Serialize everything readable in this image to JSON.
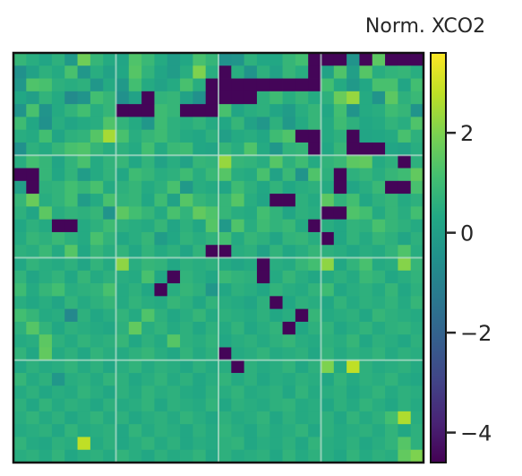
{
  "chart_data": {
    "type": "heatmap",
    "title": "",
    "xlabel": "",
    "ylabel": "",
    "rows": 32,
    "cols": 32,
    "xticks": [],
    "yticks": [],
    "gridlines": {
      "x": [
        8,
        16,
        24
      ],
      "y": [
        8,
        16,
        24
      ],
      "color": "#b9dfcf"
    },
    "colorbar": {
      "title": "Norm. XCO2",
      "range": [
        -4.6,
        3.6
      ],
      "ticks": [
        2,
        0,
        -2,
        -4
      ],
      "tick_labels": [
        "2",
        "0",
        "−2",
        "−4"
      ],
      "colormap": "viridis"
    },
    "values": [
      [
        0.8,
        0.5,
        0.2,
        0.6,
        -0.2,
        1.8,
        0.8,
        0.4,
        0.2,
        1.3,
        0.9,
        0.4,
        -0.1,
        0.3,
        1.2,
        0.8,
        -0.5,
        -0.4,
        0.6,
        0.3,
        0.3,
        0.8,
        1.1,
        -4.5,
        -4.5,
        -4.5,
        -0.4,
        -4.5,
        1.5,
        -4.5,
        -4.5,
        -4.5
      ],
      [
        -0.5,
        0.1,
        0.6,
        0.4,
        1.2,
        -0.3,
        0.5,
        0.1,
        0.3,
        1.4,
        0.7,
        0.2,
        -0.1,
        0.5,
        2.0,
        0.5,
        -4.5,
        0.5,
        -0.4,
        0.6,
        0.1,
        0.8,
        0.5,
        -4.5,
        0.1,
        1.3,
        0.0,
        1.4,
        0.5,
        0.7,
        0.8,
        0.5
      ],
      [
        -0.3,
        1.3,
        1.2,
        0.6,
        0.5,
        0.6,
        -0.3,
        0.4,
        -0.2,
        1.1,
        0.4,
        0.1,
        0.4,
        1.2,
        0.5,
        -4.5,
        -4.5,
        -4.5,
        -4.5,
        -4.5,
        -4.5,
        -4.5,
        -4.5,
        -4.5,
        1.1,
        0.4,
        -0.2,
        0.3,
        1.2,
        1.2,
        0.2,
        1.1
      ],
      [
        0.3,
        0.0,
        0.7,
        0.4,
        -0.7,
        -0.4,
        1.1,
        0.8,
        -0.5,
        0.1,
        -4.5,
        0.7,
        0.8,
        0.1,
        -0.5,
        -4.5,
        -4.5,
        -4.5,
        -4.5,
        0.6,
        1.0,
        0.5,
        0.8,
        0.4,
        0.6,
        1.7,
        2.3,
        0.4,
        -0.4,
        1.5,
        0.6,
        0.9
      ],
      [
        -0.4,
        1.2,
        -0.4,
        0.4,
        0.7,
        1.1,
        0.5,
        0.8,
        -4.5,
        -4.5,
        -4.5,
        1.0,
        0.8,
        -4.5,
        -4.5,
        -4.5,
        1.2,
        0.2,
        0.5,
        0.6,
        0.2,
        -0.1,
        0.5,
        0.8,
        0.3,
        1.1,
        -0.4,
        0.4,
        0.5,
        1.0,
        0.8,
        -0.4
      ],
      [
        1.0,
        0.3,
        -0.5,
        0.5,
        0.2,
        0.4,
        0.5,
        1.3,
        0.7,
        0.4,
        -0.3,
        1.0,
        0.6,
        0.5,
        0.7,
        0.4,
        0.3,
        0.8,
        0.1,
        -0.3,
        0.6,
        -0.2,
        0.4,
        0.8,
        0.4,
        1.0,
        0.6,
        0.3,
        0.4,
        0.7,
        0.5,
        1.3
      ],
      [
        0.5,
        0.4,
        1.1,
        0.2,
        0.6,
        0.7,
        1.4,
        2.5,
        1.2,
        0.5,
        0.8,
        1.0,
        0.6,
        0.4,
        0.3,
        0.6,
        0.0,
        0.4,
        0.5,
        0.3,
        1.0,
        1.3,
        -4.5,
        -4.5,
        0.4,
        0.6,
        -4.5,
        0.2,
        0.3,
        0.4,
        1.2,
        0.6
      ],
      [
        -0.5,
        0.6,
        0.4,
        0.8,
        1.2,
        1.3,
        0.8,
        0.5,
        0.6,
        0.4,
        1.1,
        0.4,
        0.9,
        1.0,
        0.3,
        0.2,
        0.8,
        0.5,
        1.3,
        0.4,
        -0.3,
        0.7,
        0.8,
        -4.5,
        0.3,
        0.8,
        -4.5,
        -4.5,
        -4.5,
        0.2,
        0.1,
        0.5
      ],
      [
        0.5,
        1.1,
        0.8,
        0.2,
        0.7,
        1.2,
        0.4,
        0.7,
        0.8,
        0.3,
        0.7,
        0.1,
        0.5,
        0.1,
        0.8,
        0.7,
        2.3,
        0.8,
        0.7,
        0.5,
        1.4,
        0.6,
        1.0,
        0.4,
        0.7,
        0.9,
        1.5,
        1.6,
        0.4,
        0.6,
        -4.5,
        0.6
      ],
      [
        -4.5,
        -4.5,
        0.8,
        0.3,
        0.7,
        -0.1,
        0.4,
        0.7,
        0.3,
        1.0,
        0.8,
        0.5,
        0.6,
        1.0,
        0.5,
        0.9,
        1.4,
        0.5,
        0.4,
        1.2,
        0.1,
        0.9,
        -0.4,
        1.3,
        0.6,
        -4.5,
        0.6,
        0.8,
        0.5,
        0.8,
        1.0,
        1.6
      ],
      [
        0.0,
        -4.5,
        0.6,
        0.7,
        1.1,
        0.8,
        1.2,
        0.4,
        0.6,
        0.8,
        0.4,
        0.6,
        1.2,
        -0.2,
        0.5,
        0.4,
        0.2,
        1.0,
        0.6,
        0.3,
        0.7,
        0.3,
        0.5,
        0.6,
        0.4,
        -4.5,
        0.2,
        0.5,
        0.9,
        -4.5,
        -4.5,
        1.2
      ],
      [
        0.8,
        1.7,
        0.5,
        0.7,
        1.1,
        -0.1,
        0.4,
        1.2,
        0.7,
        0.8,
        0.3,
        1.0,
        0.1,
        1.4,
        0.8,
        0.6,
        0.8,
        1.4,
        0.5,
        0.2,
        -4.5,
        -4.5,
        0.6,
        0.4,
        1.5,
        0.7,
        1.1,
        0.3,
        0.6,
        0.8,
        0.4,
        0.6
      ],
      [
        0.6,
        0.2,
        1.5,
        0.5,
        0.7,
        0.6,
        0.8,
        -0.4,
        1.5,
        1.1,
        0.8,
        0.4,
        1.2,
        0.7,
        1.6,
        1.3,
        0.8,
        0.5,
        0.4,
        1.1,
        0.7,
        0.2,
        0.6,
        0.5,
        -4.5,
        -4.5,
        1.3,
        1.1,
        0.4,
        0.8,
        0.5,
        1.1
      ],
      [
        0.3,
        0.6,
        0.4,
        -4.5,
        -4.5,
        0.4,
        0.6,
        1.0,
        0.6,
        0.5,
        0.4,
        0.8,
        0.2,
        0.6,
        0.3,
        1.4,
        -0.2,
        1.3,
        0.5,
        1.0,
        0.7,
        0.9,
        0.4,
        -4.5,
        0.5,
        0.3,
        0.7,
        0.6,
        1.2,
        0.8,
        0.6,
        0.4
      ],
      [
        0.4,
        0.8,
        0.6,
        0.9,
        0.6,
        0.4,
        1.2,
        0.7,
        0.3,
        0.5,
        0.8,
        -0.1,
        0.3,
        0.7,
        0.5,
        0.7,
        1.1,
        0.4,
        0.8,
        0.6,
        0.2,
        0.7,
        0.8,
        0.5,
        -4.5,
        0.3,
        0.7,
        0.4,
        0.8,
        0.6,
        0.2,
        0.6
      ],
      [
        0.6,
        0.5,
        0.9,
        0.4,
        1.4,
        0.3,
        0.8,
        0.5,
        0.7,
        0.3,
        0.7,
        0.4,
        0.6,
        0.2,
        0.7,
        -4.5,
        -4.5,
        0.5,
        0.6,
        0.1,
        0.7,
        0.3,
        0.5,
        0.8,
        0.6,
        0.5,
        0.3,
        0.5,
        0.4,
        0.7,
        1.3,
        0.5
      ],
      [
        0.3,
        0.7,
        0.5,
        0.4,
        0.6,
        0.2,
        0.7,
        0.4,
        2.2,
        0.5,
        0.8,
        0.7,
        0.3,
        0.6,
        0.5,
        0.6,
        0.4,
        0.2,
        0.4,
        -4.5,
        0.5,
        0.4,
        0.8,
        1.1,
        2.2,
        0.3,
        0.7,
        1.2,
        0.4,
        0.5,
        2.1,
        0.8
      ],
      [
        0.7,
        0.2,
        0.5,
        0.7,
        0.3,
        0.8,
        0.4,
        0.6,
        0.5,
        0.4,
        1.2,
        0.3,
        -4.5,
        0.7,
        0.5,
        0.3,
        0.9,
        0.7,
        0.6,
        -4.5,
        0.4,
        0.8,
        0.5,
        0.3,
        0.4,
        0.6,
        0.4,
        0.9,
        0.7,
        0.3,
        0.5,
        0.7
      ],
      [
        1.0,
        0.4,
        0.8,
        1.1,
        0.5,
        0.6,
        0.7,
        1.2,
        0.4,
        0.6,
        0.3,
        -4.5,
        0.5,
        0.8,
        0.6,
        -0.3,
        0.3,
        0.6,
        0.5,
        0.3,
        0.7,
        0.5,
        0.4,
        0.7,
        1.0,
        0.3,
        0.5,
        0.6,
        0.4,
        0.8,
        0.3,
        0.6
      ],
      [
        0.5,
        0.3,
        0.5,
        0.2,
        0.7,
        0.4,
        0.6,
        0.8,
        0.4,
        0.7,
        0.5,
        0.4,
        0.8,
        0.6,
        0.3,
        0.7,
        0.5,
        0.4,
        0.2,
        0.6,
        -4.5,
        0.3,
        0.6,
        0.5,
        0.3,
        0.7,
        0.4,
        0.6,
        0.5,
        0.7,
        0.4,
        0.8
      ],
      [
        1.1,
        0.8,
        0.4,
        0.5,
        -0.8,
        0.6,
        0.3,
        0.5,
        0.7,
        0.4,
        1.3,
        0.6,
        0.3,
        0.5,
        0.8,
        0.4,
        0.6,
        0.5,
        0.4,
        0.6,
        0.3,
        0.5,
        -4.5,
        0.8,
        0.4,
        0.5,
        0.6,
        0.3,
        0.8,
        0.6,
        0.5,
        0.4
      ],
      [
        0.6,
        1.4,
        0.7,
        0.3,
        0.6,
        0.5,
        0.4,
        0.3,
        0.6,
        1.6,
        0.5,
        0.7,
        0.4,
        0.6,
        0.3,
        0.6,
        0.4,
        0.7,
        0.3,
        0.5,
        0.7,
        -4.5,
        0.3,
        0.6,
        0.7,
        0.3,
        0.5,
        0.7,
        0.4,
        0.6,
        0.7,
        0.5
      ],
      [
        0.4,
        0.5,
        1.5,
        0.6,
        0.4,
        0.7,
        0.5,
        0.6,
        0.8,
        0.3,
        0.6,
        0.4,
        1.4,
        0.6,
        0.5,
        0.7,
        0.3,
        0.5,
        0.6,
        0.4,
        0.6,
        0.8,
        0.5,
        0.4,
        0.6,
        0.5,
        0.8,
        0.3,
        0.6,
        0.5,
        0.3,
        0.6
      ],
      [
        0.7,
        0.3,
        1.6,
        0.4,
        0.6,
        0.3,
        0.7,
        0.5,
        0.4,
        0.6,
        0.8,
        0.5,
        0.3,
        0.7,
        0.4,
        0.6,
        -4.5,
        0.4,
        0.5,
        0.7,
        0.4,
        0.5,
        0.6,
        0.3,
        0.7,
        0.4,
        0.6,
        0.5,
        0.7,
        0.4,
        0.6,
        0.5
      ],
      [
        0.3,
        0.6,
        0.4,
        0.5,
        0.7,
        0.4,
        0.6,
        0.3,
        0.5,
        0.7,
        0.4,
        0.6,
        0.5,
        0.3,
        0.6,
        0.4,
        0.5,
        -4.5,
        0.6,
        0.4,
        0.5,
        0.7,
        0.3,
        0.6,
        2.0,
        0.4,
        2.8,
        0.6,
        0.4,
        0.5,
        0.6,
        0.4
      ],
      [
        0.8,
        0.4,
        0.6,
        -0.3,
        0.5,
        0.6,
        0.4,
        0.7,
        0.6,
        0.3,
        0.5,
        0.7,
        0.4,
        0.6,
        0.3,
        0.5,
        0.7,
        0.4,
        0.6,
        0.3,
        0.5,
        0.4,
        0.6,
        0.5,
        0.3,
        0.7,
        0.4,
        0.6,
        0.5,
        0.7,
        0.4,
        0.3
      ],
      [
        0.4,
        0.6,
        0.3,
        0.5,
        0.4,
        0.7,
        0.5,
        0.3,
        0.6,
        0.4,
        0.7,
        0.5,
        0.6,
        0.4,
        0.3,
        0.6,
        0.5,
        0.7,
        0.4,
        0.5,
        0.6,
        0.3,
        0.7,
        0.4,
        0.5,
        0.6,
        0.3,
        0.5,
        0.7,
        0.4,
        0.6,
        0.5
      ],
      [
        0.6,
        0.3,
        0.7,
        0.4,
        0.6,
        0.5,
        0.3,
        0.6,
        0.4,
        0.5,
        0.7,
        0.3,
        0.6,
        0.5,
        0.4,
        0.7,
        0.3,
        0.6,
        0.5,
        0.4,
        0.6,
        0.7,
        0.4,
        0.5,
        0.3,
        0.6,
        0.4,
        0.7,
        0.5,
        0.3,
        0.6,
        0.4
      ],
      [
        0.5,
        0.7,
        0.4,
        0.6,
        0.3,
        0.5,
        0.7,
        0.4,
        0.6,
        0.3,
        0.5,
        0.6,
        0.4,
        0.7,
        0.5,
        0.3,
        0.6,
        0.4,
        0.5,
        0.7,
        0.3,
        0.6,
        0.4,
        0.5,
        0.6,
        0.3,
        0.7,
        0.4,
        0.6,
        1.1,
        2.6,
        0.5
      ],
      [
        0.4,
        0.5,
        0.6,
        0.3,
        0.7,
        0.4,
        0.5,
        0.6,
        0.3,
        0.7,
        0.4,
        0.6,
        0.5,
        0.3,
        0.6,
        0.4,
        0.7,
        0.5,
        0.3,
        0.6,
        0.4,
        0.5,
        0.7,
        0.3,
        0.6,
        0.4,
        0.5,
        0.6,
        0.4,
        0.7,
        0.3,
        0.6
      ],
      [
        0.7,
        0.4,
        0.3,
        0.6,
        0.5,
        2.8,
        0.4,
        0.6,
        0.3,
        0.5,
        0.7,
        0.4,
        0.6,
        0.3,
        0.5,
        0.4,
        0.6,
        0.7,
        0.3,
        0.5,
        0.4,
        0.6,
        0.3,
        0.7,
        0.5,
        0.4,
        0.6,
        0.3,
        0.5,
        0.7,
        1.4,
        0.6
      ],
      [
        0.5,
        0.6,
        0.4,
        0.7,
        0.3,
        0.5,
        0.6,
        0.4,
        0.7,
        0.5,
        0.3,
        0.6,
        0.4,
        0.5,
        0.7,
        0.3,
        0.6,
        0.4,
        0.5,
        0.6,
        0.3,
        0.7,
        0.4,
        0.6,
        0.5,
        0.3,
        0.7,
        0.4,
        0.6,
        0.5,
        1.6,
        2.0
      ]
    ]
  }
}
